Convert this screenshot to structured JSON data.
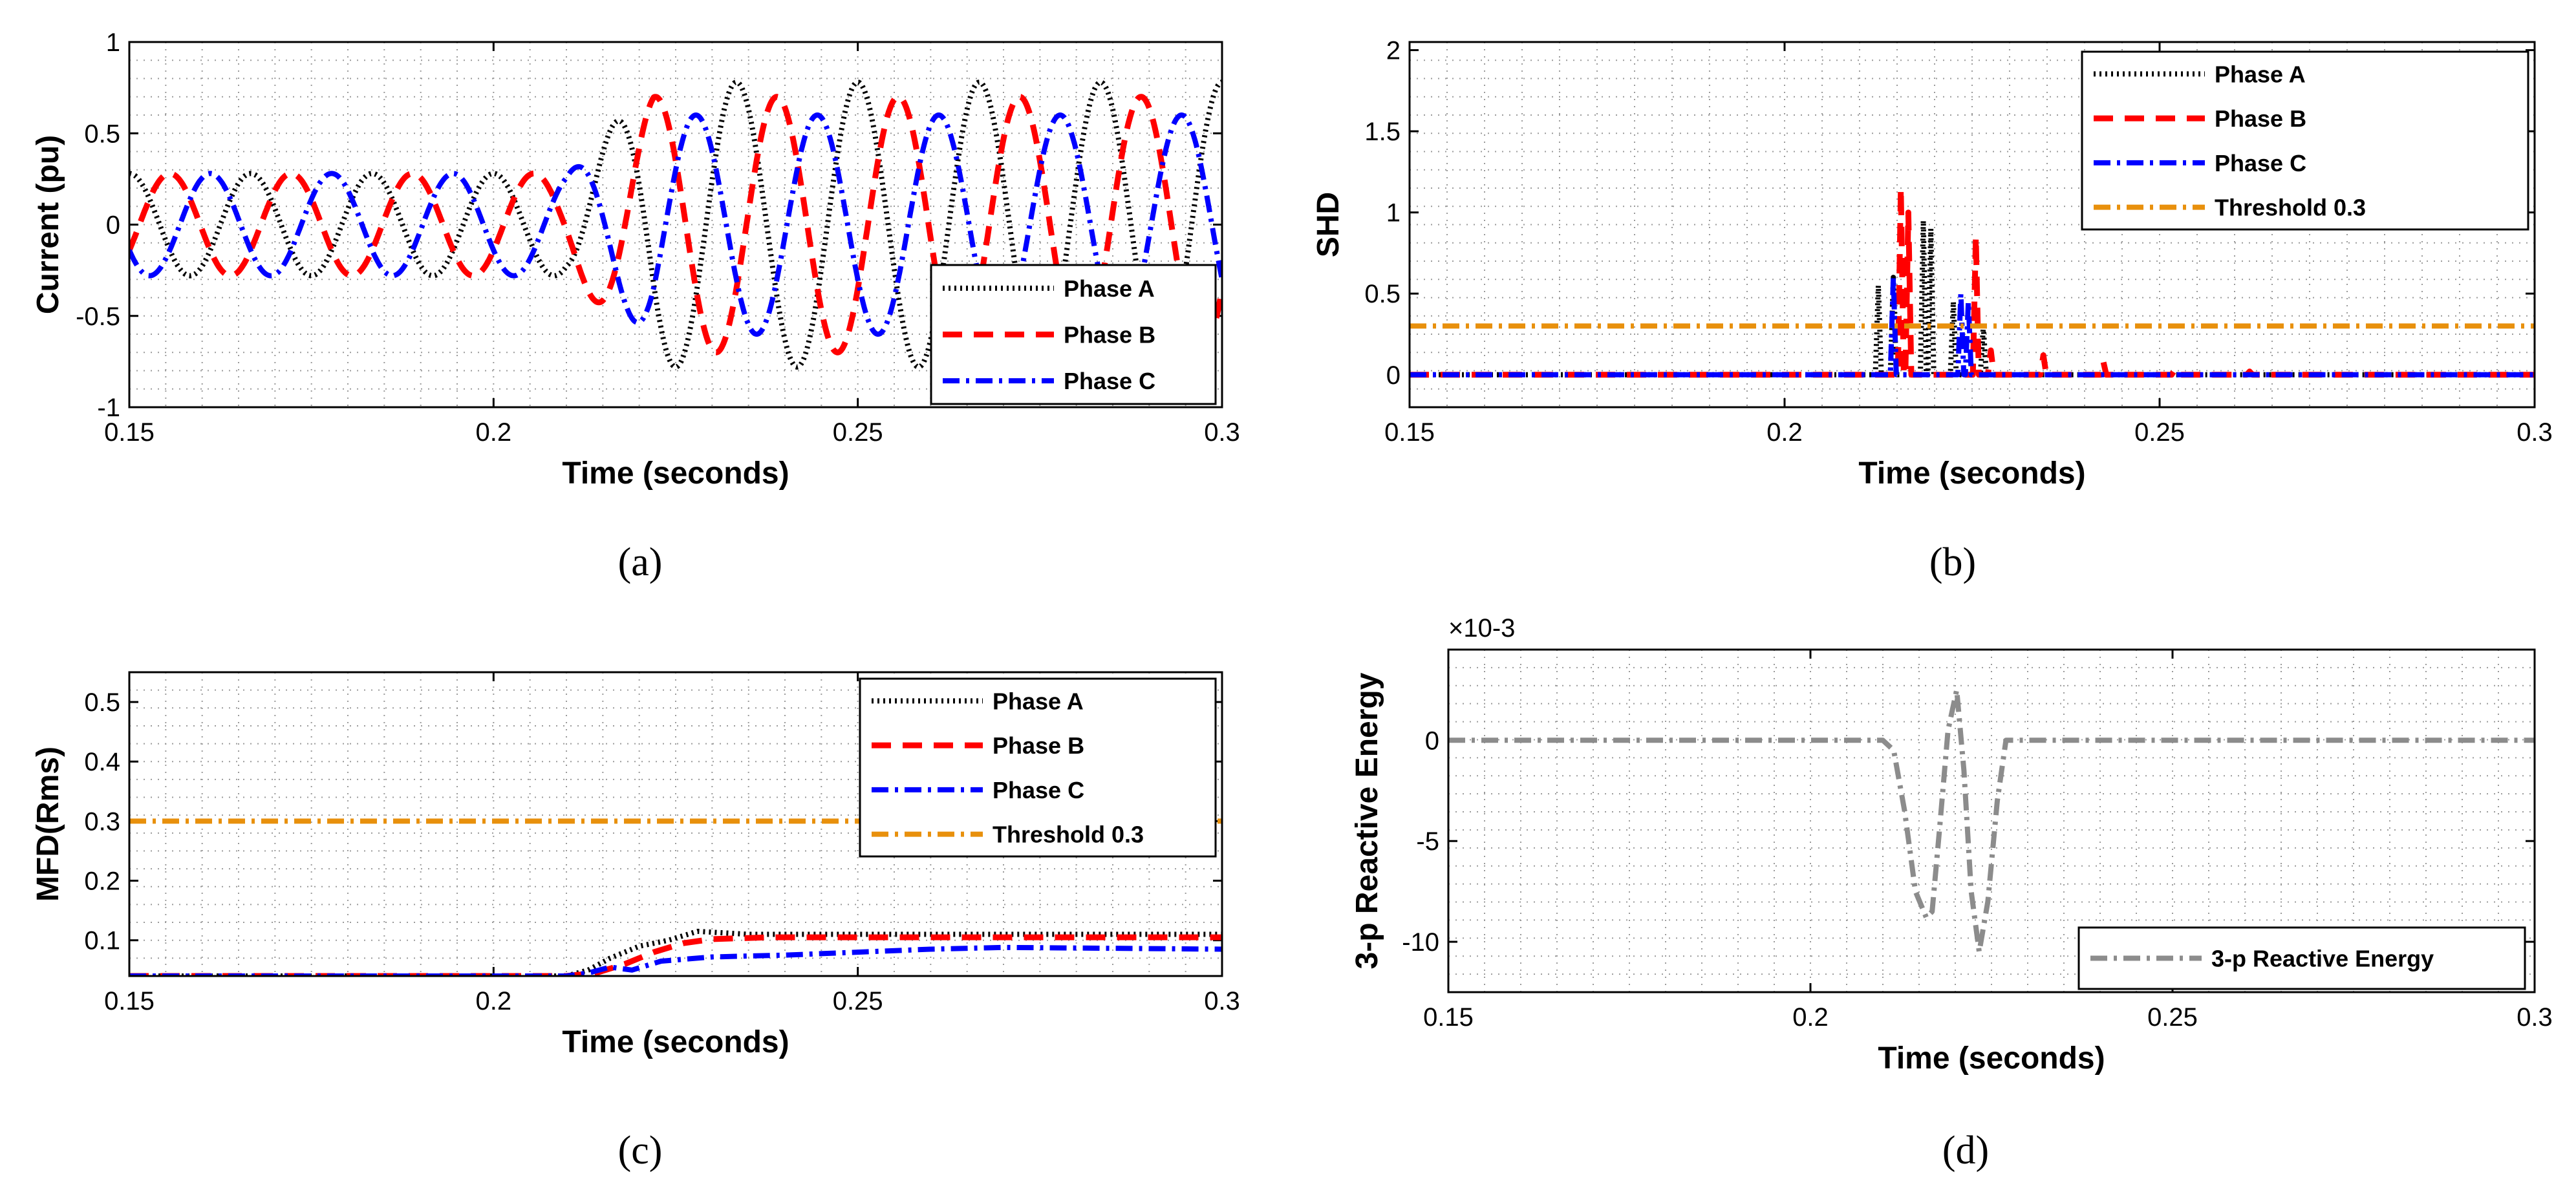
{
  "colors": {
    "phase_a": "#000000",
    "phase_b": "#ff0000",
    "phase_c": "#0000ff",
    "threshold": "#e8900c",
    "reactive": "#8c8c8c"
  },
  "chart_data": [
    {
      "id": "a",
      "type": "line",
      "caption": "(a)",
      "xlabel": "Time (seconds)",
      "ylabel": "Current (pu)",
      "xlim": [
        0.15,
        0.3
      ],
      "ylim": [
        -1,
        1
      ],
      "xticks": [
        "0.15",
        "0.2",
        "0.25",
        "0.3"
      ],
      "yticks": [
        "-1",
        "-0.5",
        "0",
        "0.5",
        "1"
      ],
      "legend_position": "lower-right",
      "series": [
        {
          "name": "Phase A",
          "style": "dotted",
          "color": "#000000",
          "pre_amplitude": 0.28,
          "post_amplitude": 0.78,
          "phase_deg": 90,
          "frequency_hz": 60,
          "fault_time": 0.21
        },
        {
          "name": "Phase B",
          "style": "dashed",
          "color": "#ff0000",
          "pre_amplitude": 0.28,
          "post_amplitude": 0.7,
          "phase_deg": -30,
          "frequency_hz": 60,
          "fault_time": 0.21
        },
        {
          "name": "Phase C",
          "style": "dashdot",
          "color": "#0000ff",
          "pre_amplitude": 0.28,
          "post_amplitude": 0.6,
          "phase_deg": 210,
          "frequency_hz": 60,
          "fault_time": 0.21
        }
      ]
    },
    {
      "id": "b",
      "type": "line",
      "caption": "(b)",
      "xlabel": "Time (seconds)",
      "ylabel": "SHD",
      "xlim": [
        0.15,
        0.3
      ],
      "ylim": [
        -0.2,
        2.05
      ],
      "xticks": [
        "0.15",
        "0.2",
        "0.25",
        "0.3"
      ],
      "yticks": [
        "0",
        "0.5",
        "1",
        "1.5",
        "2"
      ],
      "legend_position": "top-right",
      "series": [
        {
          "name": "Phase A",
          "style": "dotted",
          "color": "#000000",
          "spikes": [
            [
              0.2125,
              0.55
            ],
            [
              0.2145,
              0.6
            ],
            [
              0.2185,
              0.95
            ],
            [
              0.2195,
              0.9
            ],
            [
              0.2225,
              0.45
            ],
            [
              0.2265,
              0.3
            ]
          ]
        },
        {
          "name": "Phase B",
          "style": "dashed",
          "color": "#ff0000",
          "spikes": [
            [
              0.2155,
              1.15
            ],
            [
              0.2165,
              1.0
            ],
            [
              0.2255,
              0.85
            ],
            [
              0.2275,
              0.15
            ],
            [
              0.2345,
              0.12
            ],
            [
              0.2425,
              0.08
            ],
            [
              0.252,
              0.03
            ],
            [
              0.262,
              0.02
            ]
          ]
        },
        {
          "name": "Phase C",
          "style": "dashdot",
          "color": "#0000ff",
          "spikes": [
            [
              0.2145,
              0.6
            ],
            [
              0.2235,
              0.5
            ],
            [
              0.2245,
              0.45
            ]
          ]
        },
        {
          "name": "Threshold 0.3",
          "style": "dashdot",
          "color": "#e8900c",
          "constant": 0.3
        }
      ]
    },
    {
      "id": "c",
      "type": "line",
      "caption": "(c)",
      "xlabel": "Time (seconds)",
      "ylabel": "MFD(Rms)",
      "xlim": [
        0.15,
        0.3
      ],
      "ylim": [
        0.04,
        0.55
      ],
      "xticks": [
        "0.15",
        "0.2",
        "0.25",
        "0.3"
      ],
      "yticks": [
        "0.1",
        "0.2",
        "0.3",
        "0.4",
        "0.5"
      ],
      "legend_position": "top-right",
      "series": [
        {
          "name": "Phase A",
          "style": "dotted",
          "color": "#000000",
          "x": [
            0.15,
            0.21,
            0.213,
            0.216,
            0.22,
            0.224,
            0.228,
            0.235,
            0.3
          ],
          "y": [
            0.04,
            0.04,
            0.05,
            0.07,
            0.09,
            0.1,
            0.115,
            0.11,
            0.11
          ]
        },
        {
          "name": "Phase B",
          "style": "dashed",
          "color": "#ff0000",
          "x": [
            0.15,
            0.21,
            0.214,
            0.218,
            0.222,
            0.226,
            0.23,
            0.238,
            0.3
          ],
          "y": [
            0.04,
            0.04,
            0.045,
            0.06,
            0.08,
            0.095,
            0.102,
            0.105,
            0.105
          ]
        },
        {
          "name": "Phase C",
          "style": "dashdot",
          "color": "#0000ff",
          "x": [
            0.15,
            0.21,
            0.213,
            0.216,
            0.219,
            0.223,
            0.23,
            0.24,
            0.25,
            0.26,
            0.27,
            0.3
          ],
          "y": [
            0.04,
            0.04,
            0.045,
            0.055,
            0.05,
            0.065,
            0.072,
            0.075,
            0.08,
            0.085,
            0.088,
            0.085
          ]
        },
        {
          "name": "Threshold 0.3",
          "style": "dashdot",
          "color": "#e8900c",
          "x": [
            0.15,
            0.3
          ],
          "y": [
            0.3,
            0.3
          ]
        }
      ]
    },
    {
      "id": "d",
      "type": "line",
      "caption": "(d)",
      "xlabel": "Time (seconds)",
      "ylabel": "3-p Reactive Energy",
      "scale_label": "×10-3",
      "xlim": [
        0.15,
        0.3
      ],
      "ylim": [
        -12.5,
        4.5
      ],
      "xticks": [
        "0.15",
        "0.2",
        "0.25",
        "0.3"
      ],
      "yticks": [
        "-10",
        "-5",
        "0"
      ],
      "legend_position": "bottom-right",
      "series": [
        {
          "name": "3-p Reactive Energy",
          "style": "dashdot",
          "color": "#8c8c8c",
          "x": [
            0.15,
            0.21,
            0.2115,
            0.213,
            0.2145,
            0.216,
            0.2168,
            0.2178,
            0.219,
            0.2202,
            0.2212,
            0.2222,
            0.2233,
            0.2245,
            0.2258,
            0.227,
            0.228,
            0.3
          ],
          "y": [
            0,
            0,
            -0.5,
            -3.5,
            -7.5,
            -8.8,
            -8.5,
            -4.5,
            0.5,
            2.5,
            -1.5,
            -7.5,
            -10.5,
            -8,
            -3,
            0,
            0,
            0
          ]
        }
      ]
    }
  ]
}
